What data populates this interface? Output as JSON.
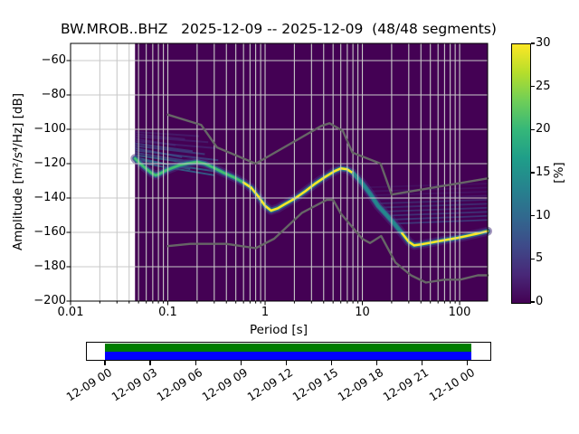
{
  "title": "BW.MROB..BHZ   2025-12-09 -- 2025-12-09  (48/48 segments)",
  "axes": {
    "xlabel": "Period [s]",
    "ylabel": "Amplitude [m²/s⁴/Hz] [dB]",
    "x_tick_labels": [
      "0.01",
      "0.1",
      "1",
      "10",
      "100"
    ],
    "y_tick_labels": [
      "−60",
      "−80",
      "−100",
      "−120",
      "−140",
      "−160",
      "−180",
      "−200"
    ]
  },
  "colorbar": {
    "label": "[%]",
    "tick_labels": [
      "0",
      "5",
      "10",
      "15",
      "20",
      "25",
      "30"
    ],
    "min": 0,
    "max": 30,
    "colormap": "viridis"
  },
  "timeline": {
    "tick_labels": [
      "12-09 00",
      "12-09 03",
      "12-09 06",
      "12-09 09",
      "12-09 12",
      "12-09 15",
      "12-09 18",
      "12-09 21",
      "12-10 00"
    ],
    "data_bar_color": "#007d00",
    "time_bar_color": "#0000ff"
  },
  "chart_data": {
    "type": "heatmap",
    "subtype": "ppsd-probabilistic-power-spectral-density",
    "title": "BW.MROB..BHZ   2025-12-09 -- 2025-12-09  (48/48 segments)",
    "station": "BW.MROB..BHZ",
    "date_range": "2025-12-09 -- 2025-12-09",
    "segments_used": 48,
    "segments_total": 48,
    "xlabel": "Period [s]",
    "ylabel": "Amplitude [m²/s⁴/Hz] [dB]",
    "x_scale": "log",
    "xlim": [
      0.01,
      194
    ],
    "ylim": [
      -200,
      -50
    ],
    "x_major_ticks": [
      0.01,
      0.1,
      1,
      10,
      100
    ],
    "y_major_ticks": [
      -60,
      -80,
      -100,
      -120,
      -140,
      -160,
      -180,
      -200
    ],
    "grid": true,
    "zero_percent_color": "#440154",
    "grid_color": "#c9c9c9",
    "histogram_period_range": [
      0.046,
      194
    ],
    "colorbar": {
      "label": "[%]",
      "range": [
        0,
        30
      ],
      "ticks": [
        0,
        5,
        10,
        15,
        20,
        25,
        30
      ],
      "colormap": "viridis"
    },
    "psd_mode_curve": [
      [
        0.046,
        -117
      ],
      [
        0.052,
        -120
      ],
      [
        0.06,
        -123
      ],
      [
        0.068,
        -125.5
      ],
      [
        0.075,
        -126.8
      ],
      [
        0.083,
        -125.8
      ],
      [
        0.095,
        -124
      ],
      [
        0.11,
        -122.5
      ],
      [
        0.13,
        -121
      ],
      [
        0.16,
        -119.8
      ],
      [
        0.2,
        -119
      ],
      [
        0.24,
        -120
      ],
      [
        0.3,
        -122.5
      ],
      [
        0.38,
        -125.5
      ],
      [
        0.48,
        -128
      ],
      [
        0.6,
        -131
      ],
      [
        0.72,
        -134
      ],
      [
        0.85,
        -139
      ],
      [
        1.0,
        -144.5
      ],
      [
        1.15,
        -147.3
      ],
      [
        1.35,
        -146
      ],
      [
        1.6,
        -143.5
      ],
      [
        2.0,
        -140.5
      ],
      [
        2.6,
        -136
      ],
      [
        3.3,
        -131.5
      ],
      [
        4.2,
        -127.5
      ],
      [
        5.2,
        -124.3
      ],
      [
        6.0,
        -122.8
      ],
      [
        7.0,
        -123.3
      ],
      [
        8.0,
        -125.5
      ],
      [
        9.0,
        -128.5
      ],
      [
        10,
        -131.5
      ],
      [
        12,
        -137.5
      ],
      [
        14.5,
        -144.5
      ],
      [
        17.5,
        -149.5
      ],
      [
        21,
        -154.5
      ],
      [
        25.5,
        -160.5
      ],
      [
        30,
        -165.5
      ],
      [
        34,
        -167.6
      ],
      [
        40,
        -167
      ],
      [
        48,
        -166.2
      ],
      [
        60,
        -165.2
      ],
      [
        75,
        -164.2
      ],
      [
        95,
        -163.2
      ],
      [
        120,
        -162
      ],
      [
        150,
        -160.8
      ],
      [
        194,
        -159.3
      ]
    ],
    "mode_color_segments": [
      {
        "range": [
          0.046,
          0.62
        ],
        "color": "#44bf70"
      },
      {
        "range": [
          0.62,
          8.3
        ],
        "color": "#fde725"
      },
      {
        "range": [
          8.3,
          26
        ],
        "color": "#24868e"
      },
      {
        "range": [
          26,
          194
        ],
        "color": "#fde725"
      }
    ],
    "spread_regions": [
      {
        "periods": [
          0.046,
          0.35
        ],
        "db": [
          -100,
          -119
        ],
        "note": "faint blue streaks above mode"
      },
      {
        "periods": [
          9,
          194
        ],
        "db": [
          -133,
          -157
        ],
        "note": "faint blue streak fan above mode tail"
      }
    ],
    "noise_models": {
      "name": "Peterson NLNM / NHNM",
      "color": "#666666",
      "nhnm": [
        [
          0.1,
          -91.5
        ],
        [
          0.22,
          -97.4
        ],
        [
          0.32,
          -110.5
        ],
        [
          0.8,
          -120.0
        ],
        [
          3.8,
          -98.0
        ],
        [
          4.6,
          -96.5
        ],
        [
          6.3,
          -101.0
        ],
        [
          7.9,
          -113.5
        ],
        [
          15.4,
          -120.0
        ],
        [
          20.0,
          -138.0
        ],
        [
          194,
          -128.6
        ]
      ],
      "nlnm": [
        [
          0.1,
          -168.0
        ],
        [
          0.17,
          -166.7
        ],
        [
          0.4,
          -166.7
        ],
        [
          0.8,
          -169.2
        ],
        [
          1.24,
          -163.7
        ],
        [
          2.4,
          -148.6
        ],
        [
          4.3,
          -141.1
        ],
        [
          5.0,
          -141.1
        ],
        [
          6.0,
          -149.0
        ],
        [
          10.0,
          -163.8
        ],
        [
          12.0,
          -166.2
        ],
        [
          15.6,
          -162.1
        ],
        [
          21.9,
          -177.5
        ],
        [
          31.6,
          -185.0
        ],
        [
          45.0,
          -189.2
        ],
        [
          70.0,
          -187.5
        ],
        [
          101.0,
          -187.5
        ],
        [
          154.0,
          -185.0
        ],
        [
          194,
          -185.0
        ]
      ]
    },
    "coverage_timeline": {
      "tick_labels": [
        "12-09 00",
        "12-09 03",
        "12-09 06",
        "12-09 09",
        "12-09 12",
        "12-09 15",
        "12-09 18",
        "12-09 21",
        "12-10 00"
      ],
      "data_bar_color": "#007d00",
      "time_bar_color": "#0000ff"
    }
  }
}
